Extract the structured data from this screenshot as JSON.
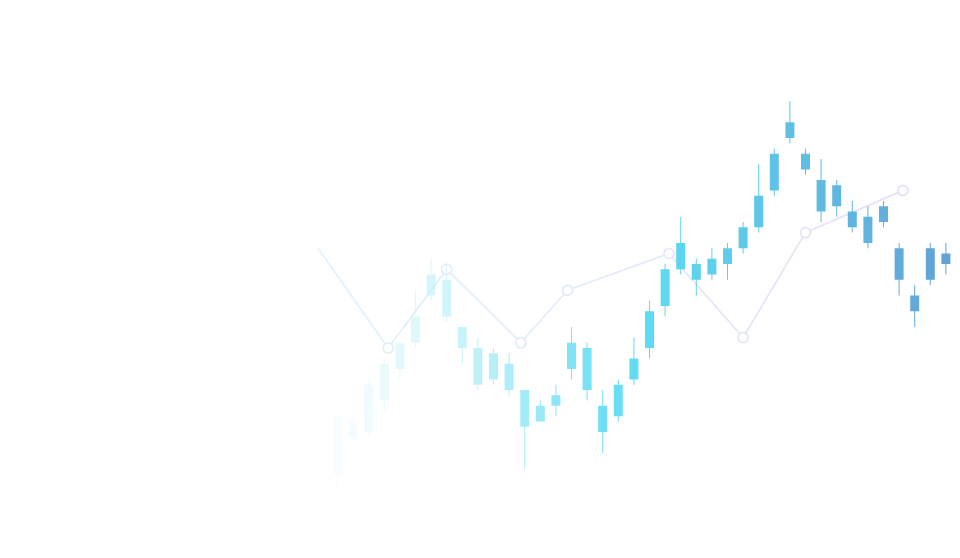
{
  "chart_data": {
    "type": "candlestick",
    "title": "",
    "xlabel": "",
    "ylabel": "",
    "grid": false,
    "axes_visible": false,
    "legend": "none",
    "colors": {
      "line_start": "#dff3fb",
      "line_end": "#e3dcf7",
      "marker_fill": "#ffffff",
      "candle_light": "#e9fbfe",
      "candle_mid": "#5ddcf2",
      "candle_dark": "#62a3d6"
    },
    "series": [
      {
        "type": "line",
        "x": [
          0,
          18,
          33,
          52,
          64,
          90,
          109,
          125,
          150
        ],
        "values": [
          59,
          40,
          55,
          41,
          51,
          58,
          42,
          62,
          70
        ]
      },
      {
        "type": "candlestick",
        "x": [
          5,
          9,
          13,
          17,
          21,
          25,
          29,
          33,
          37,
          41,
          45,
          49,
          53,
          57,
          61,
          65,
          69,
          73,
          77,
          81,
          85,
          89,
          93,
          97,
          101,
          105,
          109,
          113,
          117,
          121,
          125,
          129,
          133,
          137,
          141,
          145,
          149,
          153,
          157,
          161
        ],
        "ohlc": [
          [
            16,
            27,
            13,
            28
          ],
          [
            23,
            26,
            22,
            27
          ],
          [
            24,
            33,
            23,
            34
          ],
          [
            30,
            37,
            28,
            38
          ],
          [
            36,
            41,
            34,
            41
          ],
          [
            41,
            46,
            40,
            51
          ],
          [
            50,
            54,
            49,
            57
          ],
          [
            53,
            46,
            45,
            56
          ],
          [
            44,
            40,
            37,
            44
          ],
          [
            40,
            33,
            32,
            42
          ],
          [
            34,
            39,
            33,
            40
          ],
          [
            37,
            32,
            31,
            39
          ],
          [
            32,
            25,
            17,
            32
          ],
          [
            26,
            29,
            26,
            30
          ],
          [
            29,
            31,
            27,
            33
          ],
          [
            36,
            41,
            34,
            44
          ],
          [
            40,
            32,
            30,
            41
          ],
          [
            29,
            24,
            20,
            32
          ],
          [
            27,
            33,
            26,
            34
          ],
          [
            34,
            38,
            33,
            42
          ],
          [
            40,
            47,
            38,
            49
          ],
          [
            48,
            55,
            46,
            56
          ],
          [
            55,
            60,
            54,
            65
          ],
          [
            56,
            53,
            50,
            57
          ],
          [
            54,
            57,
            53,
            59
          ],
          [
            56,
            59,
            53,
            60
          ],
          [
            59,
            63,
            58,
            64
          ],
          [
            63,
            69,
            62,
            75
          ],
          [
            70,
            77,
            69,
            78
          ],
          [
            80,
            83,
            79,
            87
          ],
          [
            77,
            74,
            73,
            78
          ],
          [
            72,
            66,
            64,
            76
          ],
          [
            71,
            67,
            65,
            72
          ],
          [
            66,
            63,
            62,
            68
          ],
          [
            60,
            65,
            59,
            67
          ],
          [
            64,
            67,
            63,
            68
          ],
          [
            59,
            53,
            50,
            60
          ],
          [
            50,
            47,
            44,
            52
          ],
          [
            53,
            59,
            52,
            60
          ],
          [
            56,
            58,
            54,
            60
          ]
        ]
      }
    ]
  }
}
